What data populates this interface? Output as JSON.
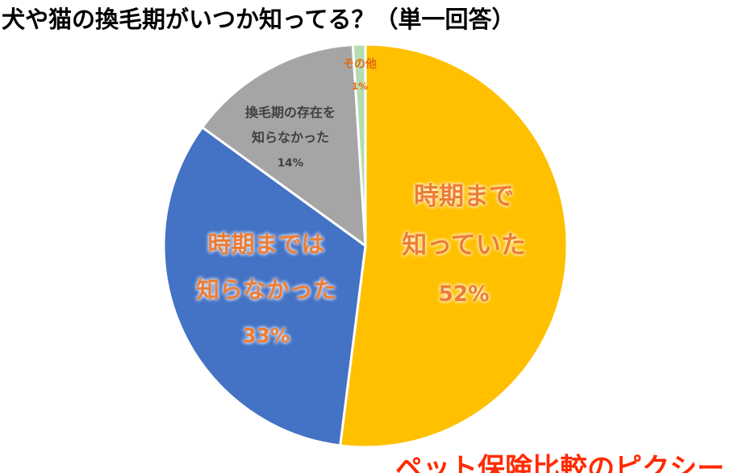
{
  "chart_data": {
    "type": "pie",
    "title": "犬や猫の換毛期がいつか知ってる？（単一回答）",
    "categories": [
      "時期まで\n知っていた",
      "時期までは\n知らなかった",
      "換毛期の存在を\n知らなかった",
      "その他"
    ],
    "values": [
      52,
      33,
      14,
      1
    ],
    "value_labels": [
      "52%",
      "33%",
      "14%",
      "1%"
    ],
    "colors": [
      "#ffc000",
      "#4472c4",
      "#a5a5a5",
      "#b5dcb0"
    ],
    "logo": "ペット保険比較のピクシー"
  }
}
